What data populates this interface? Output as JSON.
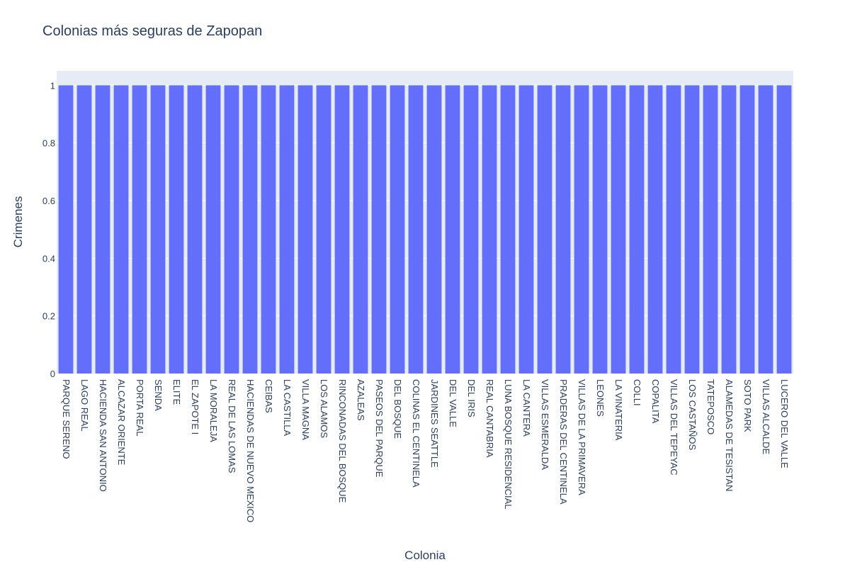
{
  "chart_data": {
    "type": "bar",
    "title": "Colonias más seguras de Zapopan",
    "xlabel": "Colonia",
    "ylabel": "Crimenes",
    "categories": [
      "PARQUE SERENO",
      "LAGO REAL",
      "HACIENDA SAN ANTONIO",
      "ALCAZAR ORIENTE",
      "PORTA REAL",
      "SENDA",
      "ELITE",
      "EL ZAPOTE I",
      "LA MORALEJA",
      "REAL DE LAS LOMAS",
      "HACIENDAS DE NUEVO MEXICO",
      "CEIBAS",
      "LA CASTILLA",
      "VILLA MAGNA",
      "LOS ALAMOS",
      "RINCONADAS DEL BOSQUE",
      "AZALEAS",
      "PASEOS DEL PARQUE",
      "DEL BOSQUE",
      "COLINAS EL CENTINELA",
      "JARDINES SEATTLE",
      "DEL VALLE",
      "DEL IRIS",
      "REAL CANTABRIA",
      "LUNA BOSQUE RESIDENCIAL",
      "LA CANTERA",
      "VILLAS ESMERALDA",
      "PRADERAS DEL CENTINELA",
      "VILLAS DE LA PRIMAVERA",
      "LEONES",
      "LA VINATERIA",
      "COLLI",
      "COPALITA",
      "VILLAS DEL TEPEYAC",
      "LOS CASTAÑOS",
      "TATEPOSCO",
      "ALAMEDAS DE TESISTAN",
      "SOTO PARK",
      "VILLAS ALCALDE",
      "LUCERO DEL VALLE"
    ],
    "values": [
      1,
      1,
      1,
      1,
      1,
      1,
      1,
      1,
      1,
      1,
      1,
      1,
      1,
      1,
      1,
      1,
      1,
      1,
      1,
      1,
      1,
      1,
      1,
      1,
      1,
      1,
      1,
      1,
      1,
      1,
      1,
      1,
      1,
      1,
      1,
      1,
      1,
      1,
      1,
      1
    ],
    "ylim": [
      0,
      1.05
    ],
    "yticks": [
      0,
      0.2,
      0.4,
      0.6,
      0.8,
      1
    ],
    "ytick_labels": [
      "0",
      "0.2",
      "0.4",
      "0.6",
      "0.8",
      "1"
    ],
    "grid": true,
    "colors": {
      "bar": "#636efa",
      "plot_bg": "#e5ecf6",
      "grid": "#ffffff",
      "text": "#2a3f5f"
    }
  }
}
